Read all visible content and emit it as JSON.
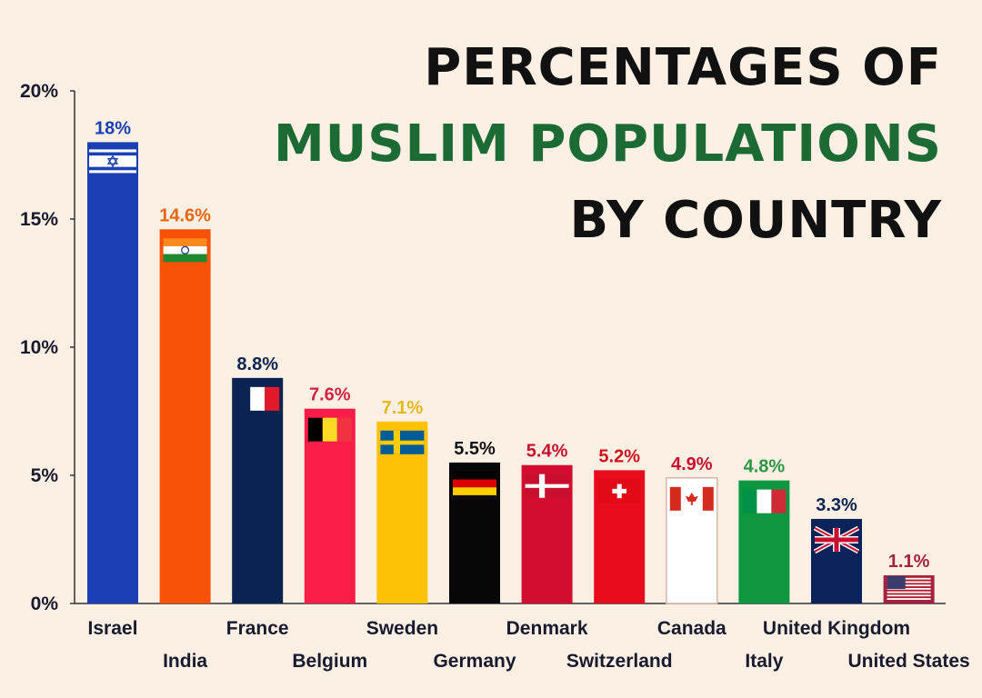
{
  "title": {
    "line1": "PERCENTAGES OF",
    "line2": "MUSLIM POPULATIONS",
    "line3": "BY COUNTRY",
    "line2_color": "#1c6b34"
  },
  "chart_data": {
    "type": "bar",
    "title": "PERCENTAGES OF MUSLIM POPULATIONS BY COUNTRY",
    "xlabel": "",
    "ylabel": "",
    "ylim": [
      0,
      20
    ],
    "yticks": [
      0,
      5,
      10,
      15,
      20
    ],
    "ytick_labels": [
      "0%",
      "5%",
      "10%",
      "15%",
      "20%"
    ],
    "grid": false,
    "legend": "none",
    "categories": [
      "Israel",
      "India",
      "France",
      "Belgium",
      "Sweden",
      "Germany",
      "Denmark",
      "Switzerland",
      "Canada",
      "Italy",
      "United Kingdom",
      "United States"
    ],
    "values": [
      18,
      14.6,
      8.8,
      7.6,
      7.1,
      5.5,
      5.4,
      5.2,
      4.9,
      4.8,
      3.3,
      1.1
    ],
    "data_labels": [
      "18%",
      "14.6%",
      "8.8%",
      "7.6%",
      "7.1%",
      "5.5%",
      "5.4%",
      "5.2%",
      "4.9%",
      "4.8%",
      "3.3%",
      "1.1%"
    ],
    "bar_colors": [
      "#1b3fb4",
      "#fa5108",
      "#0b2350",
      "#fb1d47",
      "#fcc203",
      "#070707",
      "#d40d2f",
      "#e90c1d",
      "#ffffff",
      "#0f9640",
      "#0b2358",
      "#a7203f"
    ],
    "label_colors": [
      "#1b3fb4",
      "#e8650f",
      "#0b2350",
      "#d62142",
      "#e6b813",
      "#111111",
      "#c8102e",
      "#d0121d",
      "#c8102e",
      "#2c9645",
      "#0b2350",
      "#a7203f"
    ],
    "flags": [
      "israel-flag-icon",
      "india-flag-icon",
      "france-flag-icon",
      "belgium-flag-icon",
      "sweden-flag-icon",
      "germany-flag-icon",
      "denmark-flag-icon",
      "switzerland-flag-icon",
      "canada-flag-icon",
      "italy-flag-icon",
      "uk-flag-icon",
      "usa-flag-icon"
    ]
  }
}
